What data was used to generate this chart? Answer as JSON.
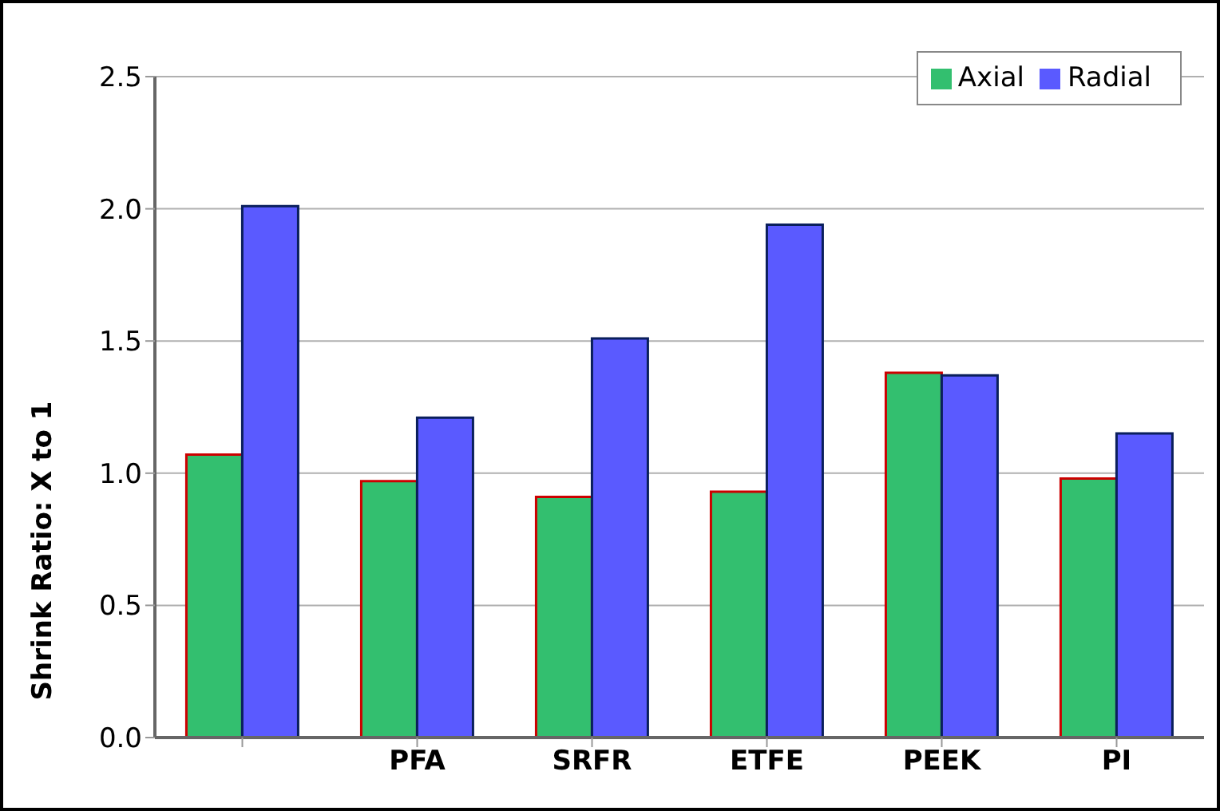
{
  "chart_data": {
    "type": "bar",
    "ylabel": "Shrink Ratio:   X to 1",
    "categories": [
      null,
      "PFA",
      "SRFR",
      "ETFE",
      "PEEK",
      "PI"
    ],
    "series": [
      {
        "name": "Axial",
        "color": "#33bf6f",
        "values": [
          1.07,
          0.97,
          0.91,
          0.93,
          1.38,
          0.98
        ]
      },
      {
        "name": "Radial",
        "color": "#5a5aff",
        "values": [
          2.01,
          1.21,
          1.51,
          1.94,
          1.37,
          1.15
        ]
      }
    ],
    "ylim": [
      0,
      2.5
    ],
    "yticks": [
      {
        "value": 0,
        "label": "0.0"
      },
      0.5,
      {
        "value": 1,
        "label": "1.0"
      },
      1.5,
      {
        "value": 2,
        "label": "2.0"
      },
      2.5
    ],
    "grid": "y",
    "legend": "top right"
  }
}
